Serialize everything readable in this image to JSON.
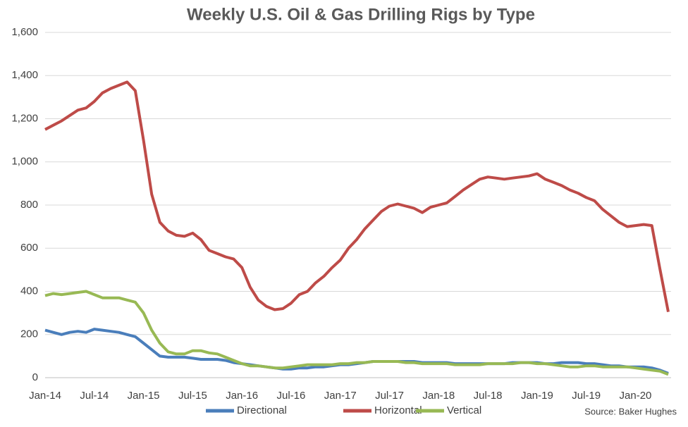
{
  "chart_data": {
    "type": "line",
    "title": "Weekly U.S. Oil & Gas Drilling Rigs by Type",
    "source": "Source: Baker Hughes",
    "categories": [
      "Jan-14",
      null,
      null,
      null,
      null,
      null,
      "Jul-14",
      null,
      null,
      null,
      null,
      null,
      "Jan-15",
      null,
      null,
      null,
      null,
      null,
      "Jul-15",
      null,
      null,
      null,
      null,
      null,
      "Jan-16",
      null,
      null,
      null,
      null,
      null,
      "Jul-16",
      null,
      null,
      null,
      null,
      null,
      "Jan-17",
      null,
      null,
      null,
      null,
      null,
      "Jul-17",
      null,
      null,
      null,
      null,
      null,
      "Jan-18",
      null,
      null,
      null,
      null,
      null,
      "Jul-18",
      null,
      null,
      null,
      null,
      null,
      "Jan-19",
      null,
      null,
      null,
      null,
      null,
      "Jul-19",
      null,
      null,
      null,
      null,
      null,
      "Jan-20",
      null,
      null,
      null,
      null
    ],
    "series": [
      {
        "name": "Directional",
        "color": "#4a7ebb",
        "values": [
          220,
          210,
          200,
          210,
          215,
          210,
          225,
          220,
          215,
          210,
          200,
          190,
          160,
          130,
          100,
          95,
          95,
          95,
          90,
          85,
          85,
          85,
          80,
          70,
          65,
          60,
          55,
          50,
          45,
          40,
          40,
          45,
          45,
          50,
          50,
          55,
          60,
          60,
          65,
          70,
          75,
          75,
          75,
          75,
          75,
          75,
          70,
          70,
          70,
          70,
          65,
          65,
          65,
          65,
          65,
          65,
          65,
          70,
          70,
          70,
          70,
          65,
          65,
          70,
          70,
          70,
          65,
          65,
          60,
          55,
          55,
          50,
          50,
          50,
          45,
          35,
          20
        ]
      },
      {
        "name": "Horizontal",
        "color": "#be4b48",
        "values": [
          1150,
          1170,
          1190,
          1215,
          1240,
          1250,
          1280,
          1320,
          1340,
          1355,
          1370,
          1330,
          1100,
          850,
          720,
          680,
          660,
          655,
          670,
          640,
          590,
          575,
          560,
          550,
          510,
          420,
          360,
          330,
          315,
          320,
          345,
          385,
          400,
          440,
          470,
          510,
          545,
          600,
          640,
          690,
          730,
          770,
          795,
          805,
          795,
          785,
          765,
          790,
          800,
          810,
          840,
          870,
          895,
          920,
          930,
          925,
          920,
          925,
          930,
          935,
          945,
          920,
          905,
          890,
          870,
          855,
          835,
          820,
          780,
          750,
          720,
          700,
          705,
          710,
          705,
          500,
          305
        ]
      },
      {
        "name": "Vertical",
        "color": "#98b954",
        "values": [
          380,
          390,
          385,
          390,
          395,
          400,
          385,
          370,
          370,
          370,
          360,
          350,
          300,
          220,
          160,
          120,
          110,
          110,
          125,
          125,
          115,
          110,
          95,
          80,
          65,
          55,
          55,
          50,
          45,
          45,
          50,
          55,
          60,
          60,
          60,
          60,
          65,
          65,
          70,
          70,
          75,
          75,
          75,
          75,
          70,
          70,
          65,
          65,
          65,
          65,
          60,
          60,
          60,
          60,
          65,
          65,
          65,
          65,
          70,
          70,
          65,
          65,
          60,
          55,
          50,
          50,
          55,
          55,
          50,
          50,
          50,
          50,
          45,
          40,
          35,
          30,
          15
        ]
      }
    ],
    "ylim": [
      0,
      1600
    ],
    "yticks": [
      0,
      200,
      400,
      600,
      800,
      {
        "value": 1000,
        "label": "1,000"
      },
      {
        "value": 1200,
        "label": "1,200"
      },
      {
        "value": 1400,
        "label": "1,400"
      },
      {
        "value": 1600,
        "label": "1,600"
      }
    ],
    "grid": true,
    "legend": "bottom"
  }
}
